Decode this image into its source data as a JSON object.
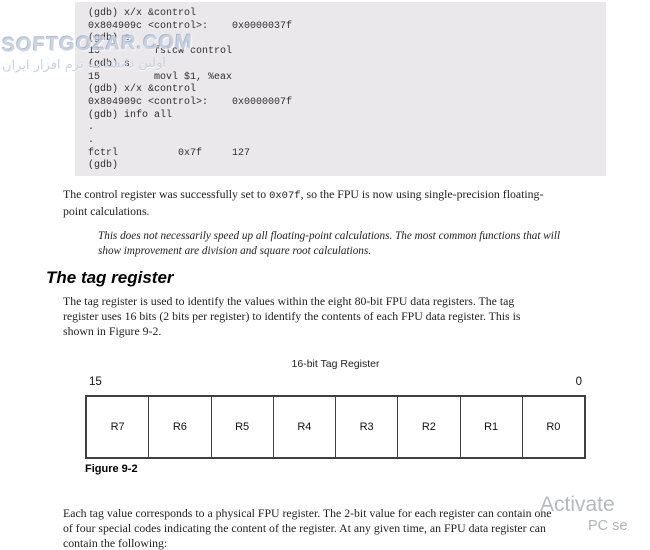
{
  "colors": {
    "terminal_bg": "#eae8eb",
    "body_text": "#1e1e1e",
    "watermark_blue": "#c2cddd",
    "watermark_gray": "#b6babd"
  },
  "document": {
    "terminal": {
      "lines": [
        "(gdb) x/x &control",
        "0x804909c <control>:    0x0000037f",
        "(gdb) s",
        "13         fstcw control",
        "(gdb) s",
        "15         movl $1, %eax",
        "(gdb) x/x &control",
        "0x804909c <control>:    0x0000007f",
        "(gdb) info all",
        ".",
        ".",
        "fctrl          0x7f     127",
        "(gdb)"
      ]
    },
    "para_control": {
      "line1_pre": "The control register was successfully set to ",
      "line1_code": "0x07f",
      "line1_post": ", so the FPU is now using single-precision floating-",
      "line2": "point calculations."
    },
    "note": {
      "line1": "This does not necessarily speed up all floating-point calculations. The most common functions that will",
      "line2": "show improvement are division and square root calculations."
    },
    "tag_section": {
      "heading": "The tag register",
      "line1": "The tag register is used to identify the values within the eight 80-bit FPU data registers. The tag",
      "line2": "register uses 16 bits (2 bits per register) to identify the contents of each FPU data register. This is",
      "line3": "shown in Figure 9-2."
    },
    "figure": {
      "title": "16-bit Tag Register",
      "bit_high_label": "15",
      "bit_low_label": "0",
      "registers": [
        "R7",
        "R6",
        "R5",
        "R4",
        "R3",
        "R2",
        "R1",
        "R0"
      ],
      "caption": "Figure 9-2"
    },
    "para_tag_values": {
      "line1": "Each tag value corresponds to a physical FPU register. The 2-bit value for each register can contain one",
      "line2": "of four special codes indicating the content of the register. At any given time, an FPU data register can",
      "line3": "contain the following:"
    }
  },
  "watermarks": {
    "softgozar_brand": "SOFTGOZAR.COM",
    "softgozar_persian": "اولین دانشنامه نرم افزار ایران",
    "activate_line1": "Activate",
    "activate_line2": "PC se"
  }
}
